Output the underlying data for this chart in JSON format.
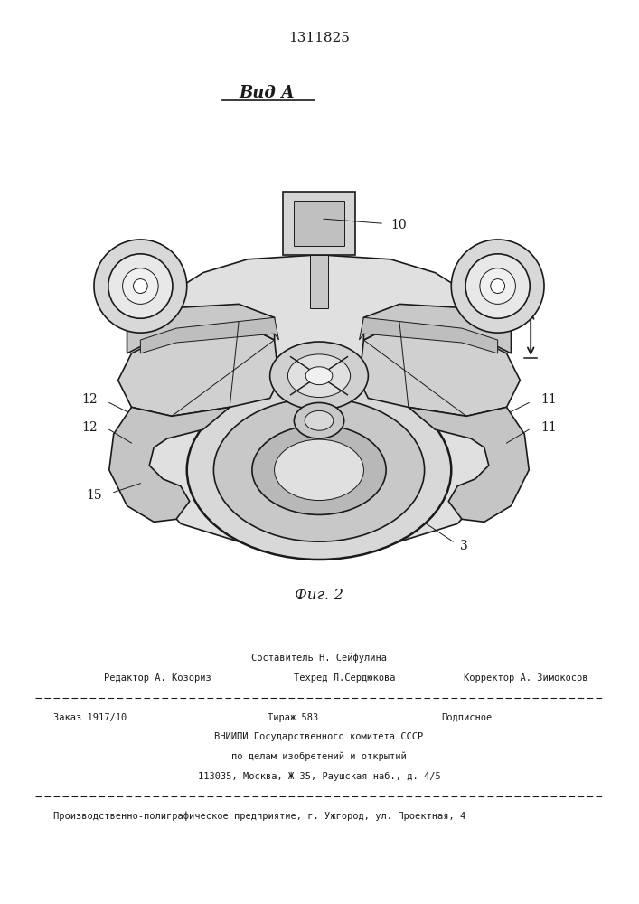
{
  "patent_number": "1311825",
  "view_label": "Вид А",
  "fig_label": "Фиг. 2",
  "bg_color": "#ffffff",
  "draw_color": "#1a1a1a",
  "footer": {
    "line1_center": "Составитель Н. Сейфулина",
    "line2_left": "Редактор А. Козориз",
    "line2_center": "Техред Л.Сердюкова",
    "line2_right": "Корректор А. Зимокосов",
    "line3_left": "Заказ 1917/10",
    "line3_center": "Тираж 583",
    "line3_right": "Подписное",
    "line4": "ВНИИПИ Государственного комитета СССР",
    "line5": "по делам изобретений и открытий",
    "line6": "113035, Москва, Ж-35, Раушская наб., д. 4/5",
    "line7": "Производственно-полиграфическое предприятие, г. Ужгород, ул. Проектная, 4"
  }
}
